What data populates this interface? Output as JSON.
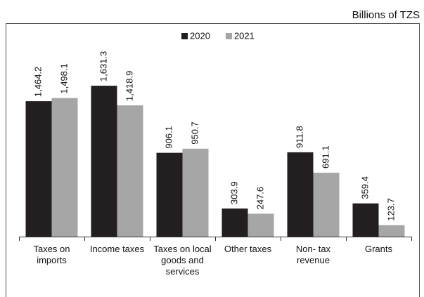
{
  "chart_data": {
    "type": "bar",
    "subtitle": "Billions of TZS",
    "categories": [
      "Taxes on imports",
      "Income taxes",
      "Taxes on local goods and services",
      "Other taxes",
      "Non- tax revenue",
      "Grants"
    ],
    "series": [
      {
        "name": "2020",
        "color": "#231f20",
        "values": [
          1464.2,
          1631.3,
          906.1,
          303.9,
          911.8,
          359.4
        ],
        "value_labels": [
          "1,464.2",
          "1,631.3",
          "906.1",
          "303.9",
          "911.8",
          "359.4"
        ]
      },
      {
        "name": "2021",
        "color": "#a6a6a6",
        "values": [
          1498.1,
          1418.9,
          950.7,
          247.6,
          691.1,
          123.7
        ],
        "value_labels": [
          "1,498.1",
          "1,418.9",
          "950.7",
          "247.6",
          "691.1",
          "123.7"
        ]
      }
    ],
    "ylim": [
      0,
      2300
    ]
  }
}
